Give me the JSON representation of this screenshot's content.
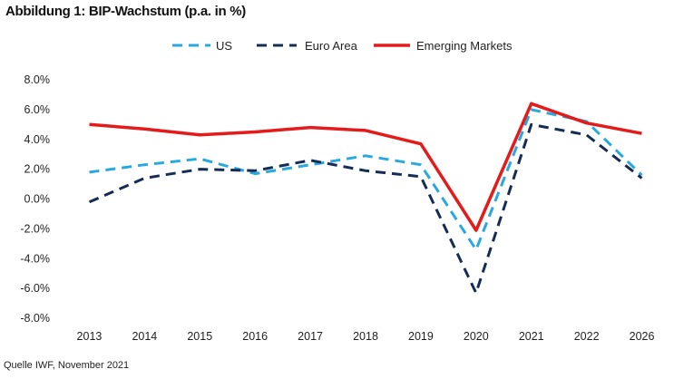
{
  "title": "Abbildung 1: BIP-Wachstum (p.a. in %)",
  "source": "Quelle  IWF, November 2021",
  "chart_data": {
    "type": "line",
    "title": "Abbildung 1: BIP-Wachstum (p.a. in %)",
    "xlabel": "",
    "ylabel": "",
    "categories": [
      "2013",
      "2014",
      "2015",
      "2016",
      "2017",
      "2018",
      "2019",
      "2020",
      "2021",
      "2022",
      "2026"
    ],
    "ylim": [
      -8,
      8
    ],
    "yticks": [
      8,
      6,
      4,
      2,
      0,
      -2,
      -4,
      -6,
      -8
    ],
    "ytick_labels": [
      "8.0%",
      "6.0%",
      "4.0%",
      "2.0%",
      "0.0%",
      "-2.0%",
      "-4.0%",
      "-6.0%",
      "-8.0%"
    ],
    "grid": false,
    "legend_position": "top",
    "series": [
      {
        "name": "US",
        "color": "#29a8e0",
        "style": "dashed",
        "values": [
          1.8,
          2.3,
          2.7,
          1.7,
          2.3,
          2.9,
          2.3,
          -3.4,
          6.0,
          5.2,
          1.6
        ]
      },
      {
        "name": "Euro Area",
        "color": "#152c55",
        "style": "dashed",
        "values": [
          -0.2,
          1.4,
          2.0,
          1.9,
          2.6,
          1.9,
          1.5,
          -6.3,
          5.0,
          4.3,
          1.4
        ]
      },
      {
        "name": "Emerging Markets",
        "color": "#e41b1b",
        "style": "solid",
        "values": [
          5.0,
          4.7,
          4.3,
          4.5,
          4.8,
          4.6,
          3.7,
          -2.1,
          6.4,
          5.1,
          4.4
        ]
      }
    ]
  }
}
